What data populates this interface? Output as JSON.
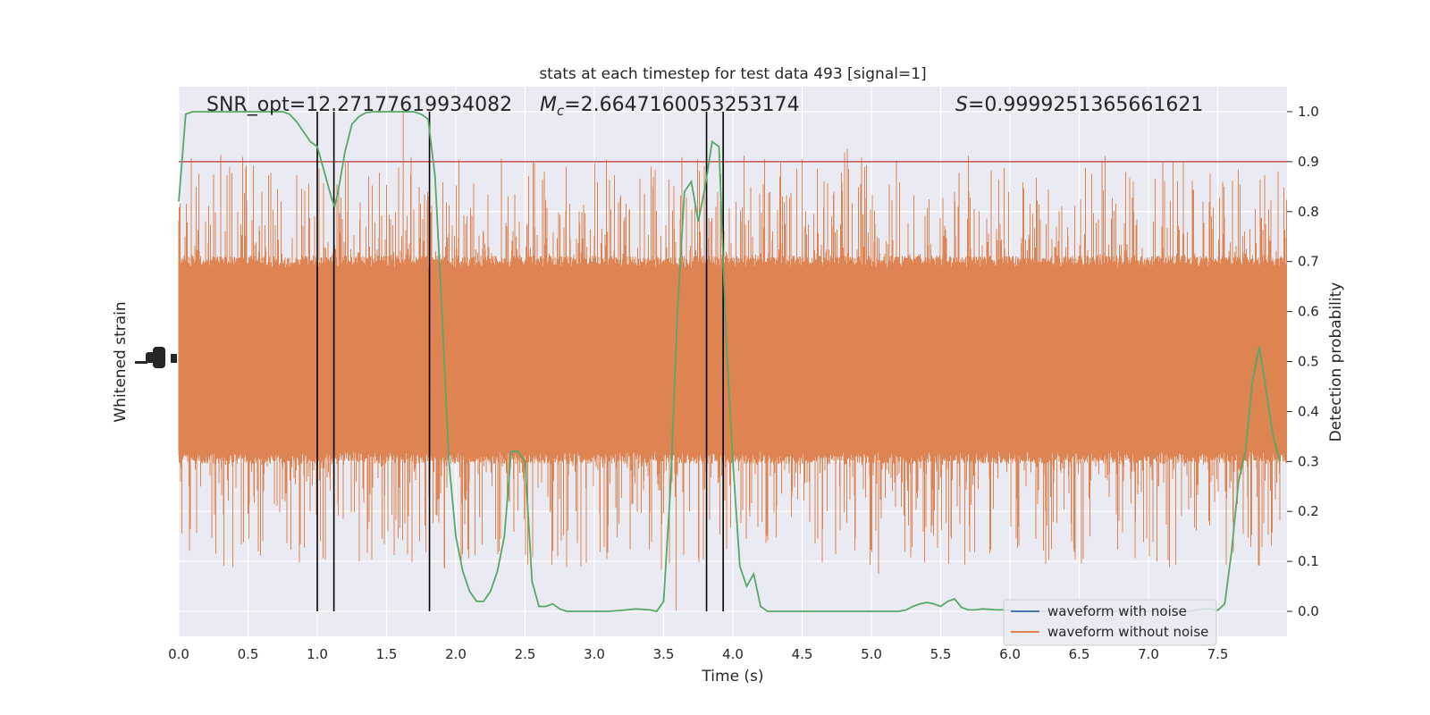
{
  "chart_data": {
    "type": "line",
    "title": "stats at each timestep for test data 493 [signal=1]",
    "xlabel": "Time (s)",
    "ylabel_left": "Whitened strain",
    "ylabel_right": "Detection probability",
    "xlim": [
      0,
      8
    ],
    "ylim_right": [
      -0.05,
      1.05
    ],
    "x_ticks": [
      "0.0",
      "0.5",
      "1.0",
      "1.5",
      "2.0",
      "2.5",
      "3.0",
      "3.5",
      "4.0",
      "4.5",
      "5.0",
      "5.5",
      "6.0",
      "6.5",
      "7.0",
      "7.5"
    ],
    "x_tick_values": [
      0,
      0.5,
      1,
      1.5,
      2,
      2.5,
      3,
      3.5,
      4,
      4.5,
      5,
      5.5,
      6,
      6.5,
      7,
      7.5
    ],
    "y_right_ticks": [
      "0.0",
      "0.1",
      "0.2",
      "0.3",
      "0.4",
      "0.5",
      "0.6",
      "0.7",
      "0.8",
      "0.9",
      "1.0"
    ],
    "y_right_tick_values": [
      0,
      0.1,
      0.2,
      0.3,
      0.4,
      0.5,
      0.6,
      0.7,
      0.8,
      0.9,
      1.0
    ],
    "annotations": {
      "snr_text": "SNR_opt=12.27177619934082",
      "mc_symbol": "M",
      "mc_subscript": "c",
      "mc_value": "=2.6647160053253174",
      "s_symbol": "S",
      "s_value": "=0.9999251365661621"
    },
    "threshold": 0.9,
    "vlines": [
      1.0,
      1.12,
      1.81,
      3.81,
      3.93
    ],
    "series": [
      {
        "name": "waveform with noise",
        "color": "#4c72b0"
      },
      {
        "name": "waveform without noise",
        "color": "#dd8452"
      },
      {
        "color": "#55a868",
        "x": [
          0,
          0.05,
          0.1,
          0.15,
          0.2,
          0.25,
          0.3,
          0.35,
          0.4,
          0.45,
          0.5,
          0.55,
          0.6,
          0.65,
          0.7,
          0.75,
          0.8,
          0.85,
          0.9,
          0.95,
          1.0,
          1.05,
          1.1,
          1.125,
          1.15,
          1.2,
          1.25,
          1.3,
          1.35,
          1.4,
          1.45,
          1.5,
          1.55,
          1.6,
          1.65,
          1.7,
          1.75,
          1.8,
          1.85,
          1.9,
          1.95,
          2.0,
          2.05,
          2.1,
          2.15,
          2.2,
          2.25,
          2.3,
          2.35,
          2.4,
          2.45,
          2.5,
          2.55,
          2.6,
          2.65,
          2.7,
          2.75,
          2.8,
          2.85,
          2.9,
          2.95,
          3.0,
          3.1,
          3.2,
          3.3,
          3.4,
          3.45,
          3.5,
          3.55,
          3.6,
          3.65,
          3.7,
          3.75,
          3.8,
          3.85,
          3.9,
          3.95,
          4.0,
          4.05,
          4.1,
          4.15,
          4.2,
          4.25,
          4.3,
          4.4,
          4.5,
          4.6,
          4.7,
          4.8,
          4.9,
          5.0,
          5.1,
          5.2,
          5.25,
          5.3,
          5.35,
          5.4,
          5.45,
          5.5,
          5.55,
          5.6,
          5.65,
          5.7,
          5.75,
          5.8,
          5.85,
          5.9,
          5.95,
          6.0,
          6.1,
          6.2,
          6.3,
          6.4,
          6.5,
          6.6,
          6.7,
          6.8,
          6.9,
          7.0,
          7.1,
          7.2,
          7.3,
          7.35,
          7.4,
          7.45,
          7.5,
          7.55,
          7.6,
          7.65,
          7.7,
          7.75,
          7.8,
          7.85,
          7.9,
          7.95
        ],
        "y": [
          0.82,
          0.995,
          1.0,
          1.0,
          1.0,
          1.0,
          1.0,
          1.0,
          1.0,
          1.0,
          1.0,
          1.0,
          1.0,
          1.0,
          1.0,
          1.0,
          0.995,
          0.98,
          0.96,
          0.94,
          0.93,
          0.88,
          0.83,
          0.81,
          0.84,
          0.92,
          0.975,
          0.99,
          0.998,
          1.0,
          1.0,
          1.0,
          1.0,
          1.0,
          1.0,
          1.0,
          0.995,
          0.985,
          0.87,
          0.6,
          0.3,
          0.15,
          0.08,
          0.04,
          0.02,
          0.02,
          0.04,
          0.08,
          0.15,
          0.32,
          0.32,
          0.3,
          0.06,
          0.01,
          0.01,
          0.015,
          0.005,
          0.0,
          0.0,
          0.0,
          0.0,
          0.0,
          0.0,
          0.002,
          0.005,
          0.003,
          0.0,
          0.02,
          0.25,
          0.6,
          0.84,
          0.86,
          0.78,
          0.85,
          0.94,
          0.93,
          0.55,
          0.3,
          0.09,
          0.05,
          0.075,
          0.01,
          0.0,
          0.0,
          0.0,
          0.0,
          0.0,
          0.0,
          0.0,
          0.0,
          0.0,
          0.0,
          0.0,
          0.003,
          0.01,
          0.015,
          0.018,
          0.015,
          0.01,
          0.02,
          0.025,
          0.008,
          0.003,
          0.003,
          0.005,
          0.004,
          0.003,
          0.003,
          0.002,
          0.0,
          0.0,
          0.0,
          0.0,
          0.0,
          0.0,
          0.0,
          0.0,
          0.0,
          0.0,
          0.0,
          0.0,
          0.0,
          0.003,
          0.005,
          0.005,
          0.002,
          0.015,
          0.12,
          0.26,
          0.32,
          0.46,
          0.53,
          0.44,
          0.35,
          0.3
        ]
      }
    ],
    "legend": {
      "location": "lower right"
    },
    "grid": true
  }
}
